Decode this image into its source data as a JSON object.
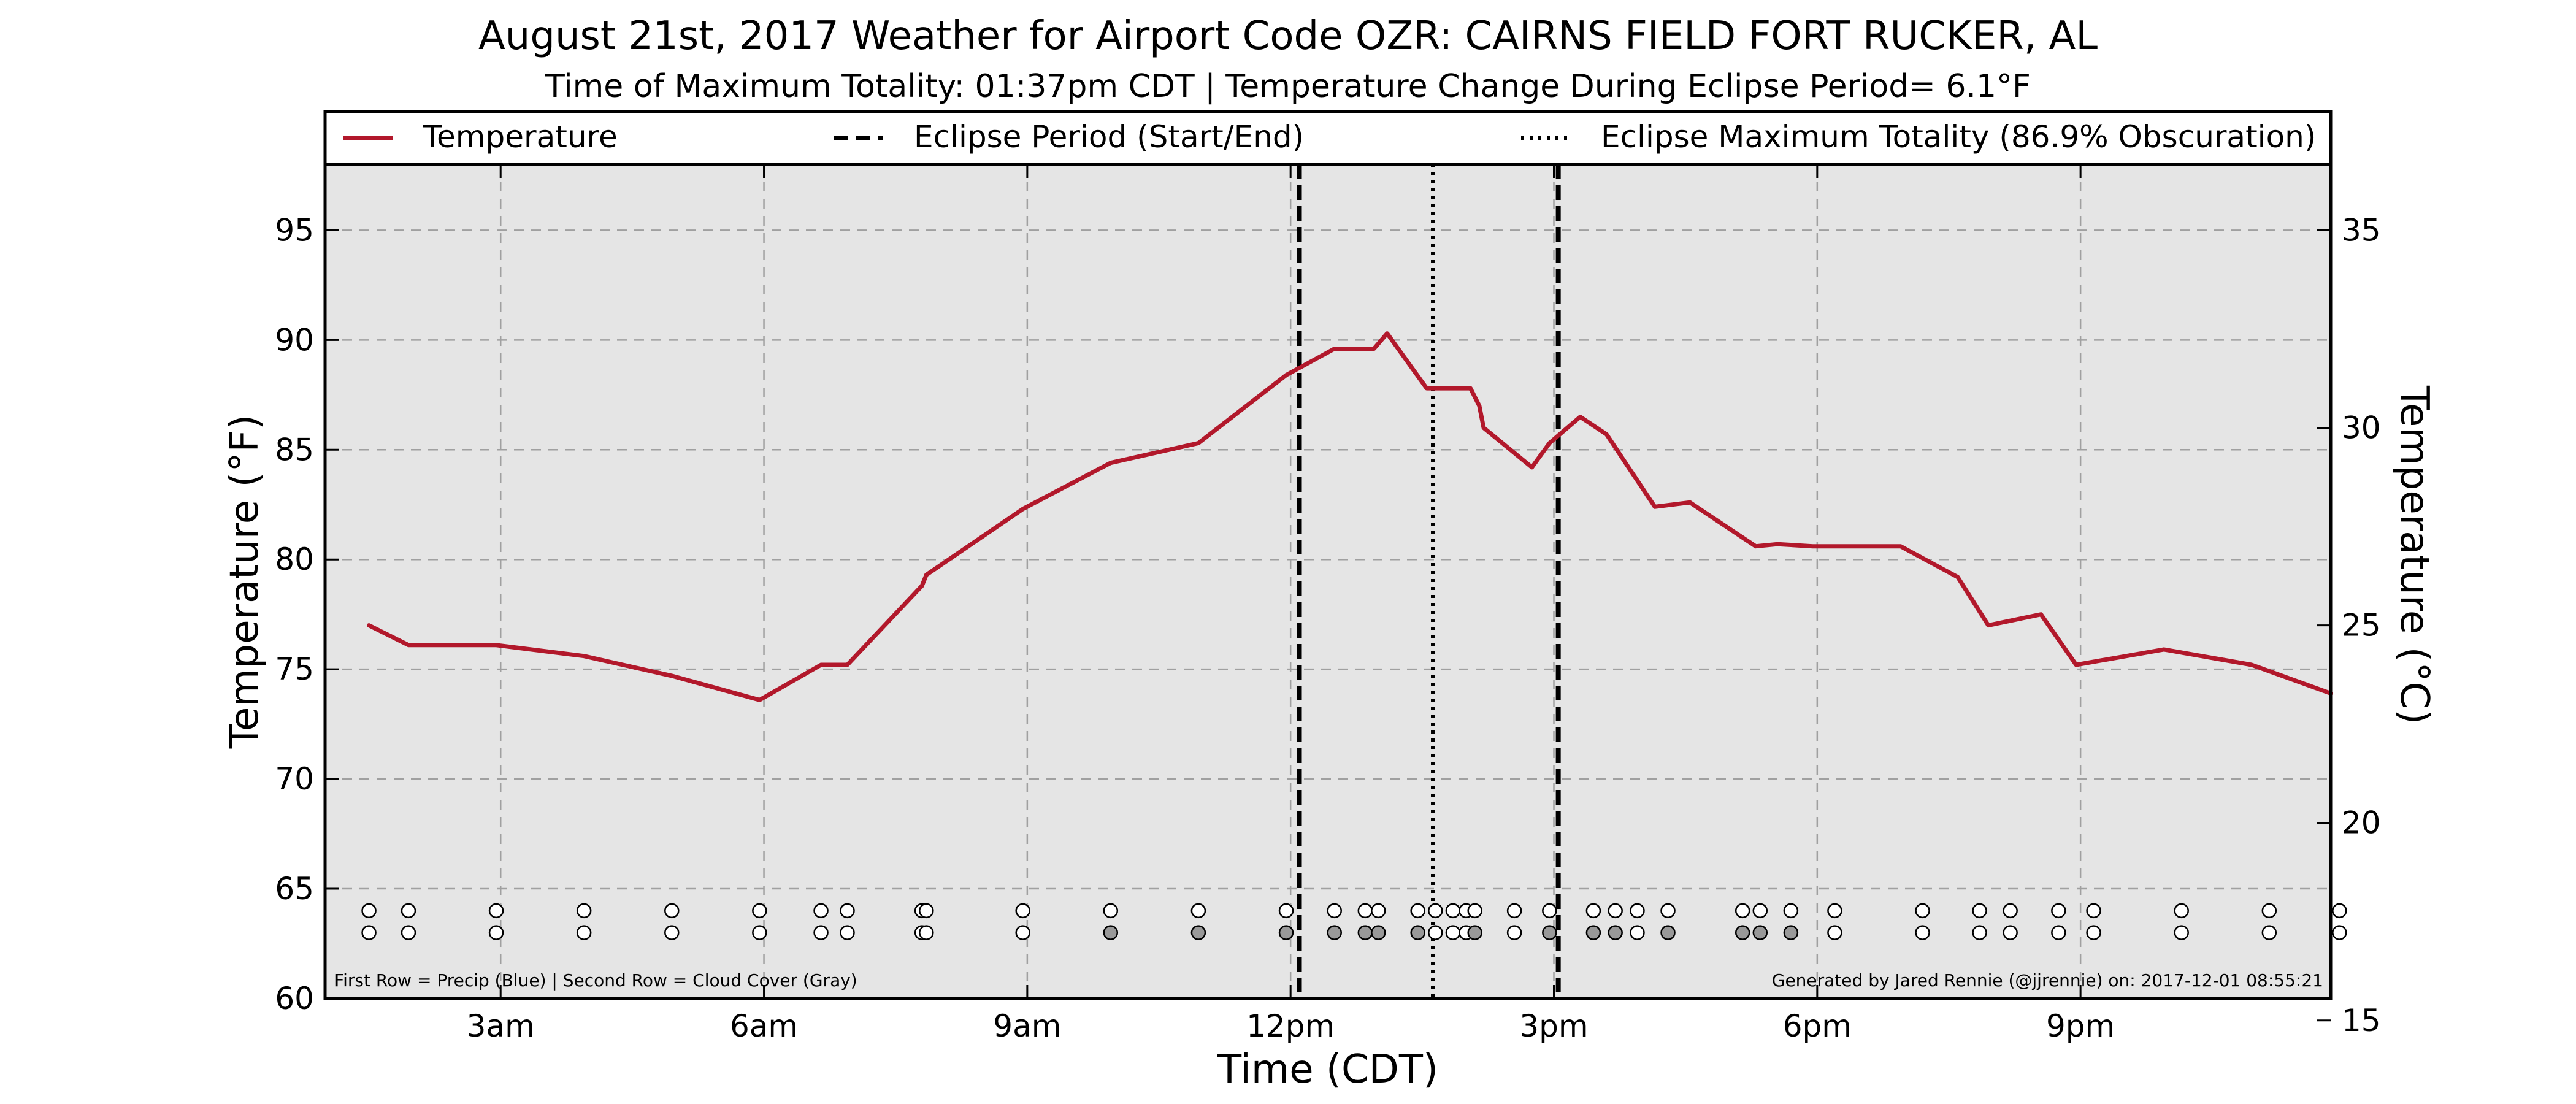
{
  "chart_data": {
    "type": "line",
    "title": "August 21st, 2017 Weather for Airport Code OZR: CAIRNS FIELD FORT RUCKER, AL",
    "subtitle": "Time of Maximum Totality: 01:37pm CDT | Temperature Change During Eclipse Period= 6.1°F",
    "xlabel": "Time (CDT)",
    "ylabel": "Temperature (°F)",
    "ylabel_right": "Temperature (°C)",
    "xlim": [
      1.0,
      23.85
    ],
    "ylim": [
      60,
      98
    ],
    "ylim_right_c": [
      15.56,
      36.67
    ],
    "x_ticks": [
      {
        "x": 3,
        "label": "3am"
      },
      {
        "x": 6,
        "label": "6am"
      },
      {
        "x": 9,
        "label": "9am"
      },
      {
        "x": 12,
        "label": "12pm"
      },
      {
        "x": 15,
        "label": "3pm"
      },
      {
        "x": 18,
        "label": "6pm"
      },
      {
        "x": 21,
        "label": "9pm"
      }
    ],
    "y_ticks": [
      60,
      65,
      70,
      75,
      80,
      85,
      90,
      95
    ],
    "y_ticks_right": [
      15,
      20,
      25,
      30,
      35
    ],
    "grid": true,
    "legend_position": "top",
    "legend": {
      "temperature": "Temperature",
      "eclipse_period": "Eclipse Period (Start/End)",
      "max_totality": "Eclipse Maximum Totality (86.9% Obscuration)"
    },
    "series": [
      {
        "name": "Temperature",
        "color": "#b2182b",
        "x": [
          1.5,
          1.95,
          2.95,
          3.95,
          4.95,
          5.95,
          6.65,
          6.95,
          7.8,
          7.85,
          8.95,
          9.95,
          10.95,
          11.95,
          12.5,
          12.95,
          13.1,
          13.55,
          14.05,
          14.15,
          14.2,
          14.75,
          14.95,
          15.3,
          15.6,
          15.85,
          16.15,
          16.55,
          17.3,
          17.55,
          17.95,
          18.95,
          19.6,
          19.95,
          20.55,
          20.95,
          21.95,
          22.95,
          23.85
        ],
        "y": [
          77.0,
          76.1,
          76.1,
          75.6,
          74.7,
          73.6,
          75.2,
          75.2,
          78.8,
          79.3,
          82.3,
          84.4,
          85.3,
          88.4,
          89.6,
          89.6,
          90.3,
          87.8,
          87.8,
          87.0,
          86.0,
          84.2,
          85.3,
          86.5,
          85.7,
          84.2,
          82.4,
          82.6,
          80.6,
          80.7,
          80.6,
          80.6,
          79.2,
          77.0,
          77.5,
          75.2,
          75.9,
          75.2,
          73.9
        ]
      }
    ],
    "eclipse_period": {
      "start": 12.1,
      "end": 15.05
    },
    "max_totality": 13.62,
    "precip_obs": [
      {
        "x": 1.5,
        "fill": "white"
      },
      {
        "x": 1.95,
        "fill": "white"
      },
      {
        "x": 2.95,
        "fill": "white"
      },
      {
        "x": 3.95,
        "fill": "white"
      },
      {
        "x": 4.95,
        "fill": "white"
      },
      {
        "x": 5.95,
        "fill": "white"
      },
      {
        "x": 6.65,
        "fill": "white"
      },
      {
        "x": 6.95,
        "fill": "white"
      },
      {
        "x": 7.8,
        "fill": "white"
      },
      {
        "x": 7.85,
        "fill": "white"
      },
      {
        "x": 8.95,
        "fill": "white"
      },
      {
        "x": 9.95,
        "fill": "white"
      },
      {
        "x": 10.95,
        "fill": "white"
      },
      {
        "x": 11.95,
        "fill": "white"
      },
      {
        "x": 12.5,
        "fill": "white"
      },
      {
        "x": 12.85,
        "fill": "white"
      },
      {
        "x": 13.0,
        "fill": "white"
      },
      {
        "x": 13.45,
        "fill": "white"
      },
      {
        "x": 13.65,
        "fill": "white"
      },
      {
        "x": 13.85,
        "fill": "white"
      },
      {
        "x": 14.0,
        "fill": "white"
      },
      {
        "x": 14.1,
        "fill": "white"
      },
      {
        "x": 14.55,
        "fill": "white"
      },
      {
        "x": 14.95,
        "fill": "white"
      },
      {
        "x": 15.45,
        "fill": "white"
      },
      {
        "x": 15.7,
        "fill": "white"
      },
      {
        "x": 15.95,
        "fill": "white"
      },
      {
        "x": 16.3,
        "fill": "white"
      },
      {
        "x": 17.15,
        "fill": "white"
      },
      {
        "x": 17.35,
        "fill": "white"
      },
      {
        "x": 17.7,
        "fill": "white"
      },
      {
        "x": 18.2,
        "fill": "white"
      },
      {
        "x": 19.2,
        "fill": "white"
      },
      {
        "x": 19.85,
        "fill": "white"
      },
      {
        "x": 20.2,
        "fill": "white"
      },
      {
        "x": 20.75,
        "fill": "white"
      },
      {
        "x": 21.15,
        "fill": "white"
      },
      {
        "x": 22.15,
        "fill": "white"
      },
      {
        "x": 23.15,
        "fill": "white"
      },
      {
        "x": 23.95,
        "fill": "white"
      }
    ],
    "cloud_obs": [
      {
        "x": 1.5,
        "fill": "white"
      },
      {
        "x": 1.95,
        "fill": "white"
      },
      {
        "x": 2.95,
        "fill": "white"
      },
      {
        "x": 3.95,
        "fill": "white"
      },
      {
        "x": 4.95,
        "fill": "white"
      },
      {
        "x": 5.95,
        "fill": "white"
      },
      {
        "x": 6.65,
        "fill": "white"
      },
      {
        "x": 6.95,
        "fill": "white"
      },
      {
        "x": 7.8,
        "fill": "white"
      },
      {
        "x": 7.85,
        "fill": "white"
      },
      {
        "x": 8.95,
        "fill": "white"
      },
      {
        "x": 9.95,
        "fill": "gray"
      },
      {
        "x": 10.95,
        "fill": "gray"
      },
      {
        "x": 11.95,
        "fill": "gray"
      },
      {
        "x": 12.5,
        "fill": "gray"
      },
      {
        "x": 12.85,
        "fill": "gray"
      },
      {
        "x": 13.0,
        "fill": "gray"
      },
      {
        "x": 13.45,
        "fill": "gray"
      },
      {
        "x": 13.65,
        "fill": "white"
      },
      {
        "x": 13.85,
        "fill": "white"
      },
      {
        "x": 14.0,
        "fill": "white"
      },
      {
        "x": 14.1,
        "fill": "gray"
      },
      {
        "x": 14.55,
        "fill": "white"
      },
      {
        "x": 14.95,
        "fill": "gray"
      },
      {
        "x": 15.45,
        "fill": "gray"
      },
      {
        "x": 15.7,
        "fill": "gray"
      },
      {
        "x": 15.95,
        "fill": "white"
      },
      {
        "x": 16.3,
        "fill": "gray"
      },
      {
        "x": 17.15,
        "fill": "gray"
      },
      {
        "x": 17.35,
        "fill": "gray"
      },
      {
        "x": 17.7,
        "fill": "gray"
      },
      {
        "x": 18.2,
        "fill": "white"
      },
      {
        "x": 19.2,
        "fill": "white"
      },
      {
        "x": 19.85,
        "fill": "white"
      },
      {
        "x": 20.2,
        "fill": "white"
      },
      {
        "x": 20.75,
        "fill": "white"
      },
      {
        "x": 21.15,
        "fill": "white"
      },
      {
        "x": 22.15,
        "fill": "white"
      },
      {
        "x": 23.15,
        "fill": "white"
      },
      {
        "x": 23.95,
        "fill": "white"
      }
    ],
    "footnote_left": "First Row = Precip (Blue) | Second Row = Cloud Cover (Gray)",
    "footnote_right": "Generated by Jared Rennie (@jjrennie) on: 2017-12-01 08:55:21"
  },
  "colors": {
    "plot_background": "#e5e5e5",
    "temperature_line": "#b2182b",
    "cloud_gray": "#999999",
    "grid": "#a0a0a0"
  }
}
